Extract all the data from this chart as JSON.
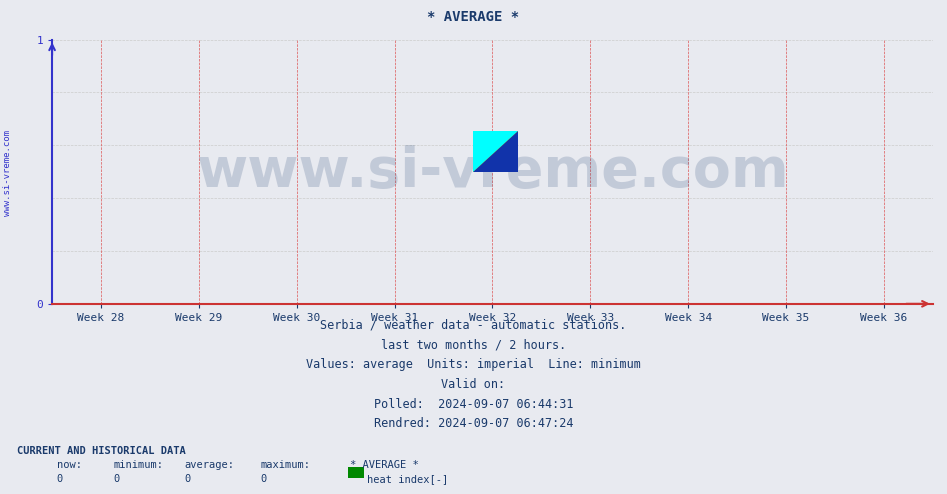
{
  "title": "* AVERAGE *",
  "title_color": "#1a3a6b",
  "title_fontsize": 10,
  "background_color": "#e8eaf0",
  "plot_bg_color": "#e8eaf0",
  "xlim_weeks": [
    27.5,
    36.5
  ],
  "ylim": [
    0,
    1
  ],
  "yticks": [
    0,
    1
  ],
  "x_week_labels": [
    "Week 28",
    "Week 29",
    "Week 30",
    "Week 31",
    "Week 32",
    "Week 33",
    "Week 34",
    "Week 35",
    "Week 36"
  ],
  "x_week_positions": [
    28,
    29,
    30,
    31,
    32,
    33,
    34,
    35,
    36
  ],
  "y_axis_color": "#3333cc",
  "x_axis_color": "#cc3333",
  "grid_color_h": "#cccccc",
  "grid_color_v": "#dd5555",
  "watermark_text": "www.si-vreme.com",
  "watermark_color": "#1a3a6b",
  "watermark_fontsize": 40,
  "watermark_alpha": 0.18,
  "footer_lines": [
    "Serbia / weather data - automatic stations.",
    "last two months / 2 hours.",
    "Values: average  Units: imperial  Line: minimum",
    "Valid on:",
    "Polled:  2024-09-07 06:44:31",
    "Rendred: 2024-09-07 06:47:24"
  ],
  "footer_color": "#1a3a6b",
  "footer_fontsize": 8.5,
  "current_label": "CURRENT AND HISTORICAL DATA",
  "current_color": "#1a3a6b",
  "current_fontsize": 7.5,
  "legend_label": "heat index[-]",
  "legend_color": "#008800",
  "col_headers": [
    "now:",
    "minimum:",
    "average:",
    "maximum:",
    "* AVERAGE *"
  ],
  "col_values": [
    "0",
    "0",
    "0",
    "0"
  ],
  "sidebar_text": "www.si-vreme.com",
  "sidebar_color": "#3333cc",
  "sidebar_fontsize": 6.5
}
